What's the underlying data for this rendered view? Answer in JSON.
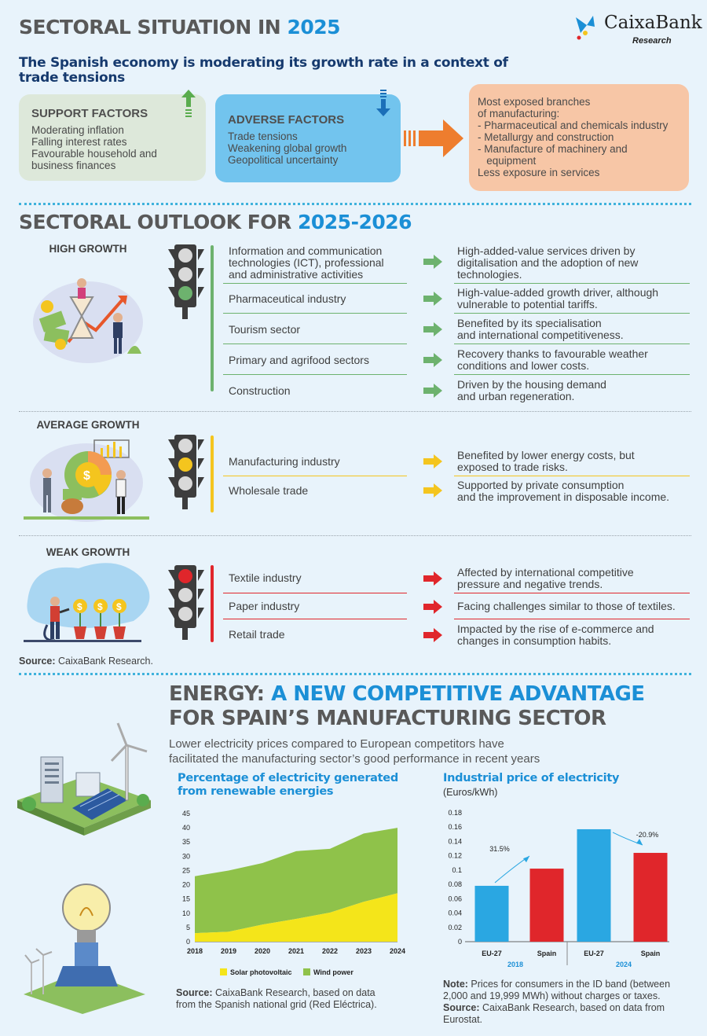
{
  "header": {
    "title_main": "SECTORAL SITUATION IN",
    "title_year": "2025",
    "logo_name": "CaixaBank",
    "logo_sub": "Research",
    "subtitle_line1": "The Spanish economy is moderating its growth rate in a context of",
    "subtitle_line2": "trade tensions"
  },
  "factors": {
    "support": {
      "title": "SUPPORT FACTORS",
      "items": [
        "Moderating inflation",
        "Falling interest rates",
        "Favourable household and",
        "business finances"
      ]
    },
    "adverse": {
      "title": "ADVERSE FACTORS",
      "items": [
        "Trade tensions",
        "Weakening global growth",
        "Geopolitical uncertainty"
      ]
    },
    "exposed": {
      "lines": [
        "Most exposed branches",
        "of manufacturing:",
        "- Pharmaceutical and chemicals industry",
        "- Metallurgy and construction",
        "- Manufacture of machinery and",
        "   equipment",
        "Less exposure in services"
      ]
    }
  },
  "outlook": {
    "title_main": "SECTORAL OUTLOOK FOR",
    "title_years": "2025-2026",
    "groups": [
      {
        "label": "HIGH GROWTH",
        "color": "#6db26e",
        "rows": [
          {
            "sector": [
              "Information and communication",
              "technologies (ICT), professional",
              "and administrative activities"
            ],
            "desc": [
              "High-added-value services driven by",
              "digitalisation and the adoption of new",
              "technologies."
            ]
          },
          {
            "sector": [
              "Pharmaceutical industry"
            ],
            "desc": [
              "High-value-added growth driver, although",
              "vulnerable to potential tariffs."
            ]
          },
          {
            "sector": [
              "Tourism sector"
            ],
            "desc": [
              "Benefited by its specialisation",
              "and international competitiveness."
            ]
          },
          {
            "sector": [
              "Primary and agrifood sectors"
            ],
            "desc": [
              "Recovery thanks to favourable weather",
              "conditions and lower costs."
            ]
          },
          {
            "sector": [
              "Construction"
            ],
            "desc": [
              "Driven by the housing demand",
              "and urban regeneration."
            ]
          }
        ]
      },
      {
        "label": "AVERAGE GROWTH",
        "color": "#f4c51e",
        "rows": [
          {
            "sector": [
              "Manufacturing industry"
            ],
            "desc": [
              "Benefited by lower energy costs, but",
              "exposed to trade risks."
            ]
          },
          {
            "sector": [
              "Wholesale trade"
            ],
            "desc": [
              "Supported by private consumption",
              "and the improvement in disposable income."
            ]
          }
        ]
      },
      {
        "label": "WEAK GROWTH",
        "color": "#e0262b",
        "rows": [
          {
            "sector": [
              "Textile industry"
            ],
            "desc": [
              "Affected by international competitive",
              "pressure and negative trends."
            ]
          },
          {
            "sector": [
              "Paper industry"
            ],
            "desc": [
              "Facing challenges similar to those of textiles."
            ]
          },
          {
            "sector": [
              "Retail trade"
            ],
            "desc": [
              "Impacted by the rise of e-commerce and",
              "changes in consumption habits."
            ]
          }
        ]
      }
    ],
    "source_label": "Source:",
    "source_text": " CaixaBank Research."
  },
  "energy": {
    "title_line1_a": "ENERGY:",
    "title_line1_b": "A NEW COMPETITIVE ADVANTAGE",
    "title_line2": "FOR SPAIN’S MANUFACTURING SECTOR",
    "intro_line1": "Lower electricity prices compared to European competitors have",
    "intro_line2": "facilitated the manufacturing sector’s good performance in recent years",
    "left_chart_title_1": "Percentage of electricity generated",
    "left_chart_title_2": "from renewable energies",
    "left_source_label": "Source:",
    "left_source_1": " CaixaBank Research, based on data",
    "left_source_2": "from the Spanish national grid (Red Eléctrica).",
    "right_chart_title": "Industrial price of electricity",
    "right_chart_unit": "(Euros/kWh)",
    "note_label": "Note:",
    "note_1": " Prices for consumers in the ID band (between",
    "note_2": "2,000 and 19,999 MWh) without charges or taxes.",
    "right_source_label": "Source:",
    "right_source_1": " CaixaBank Research, based on data from",
    "right_source_2": "Eurostat."
  },
  "chart_data": [
    {
      "type": "area",
      "title": "Percentage of electricity generated from renewable energies",
      "x": [
        "2018",
        "2019",
        "2020",
        "2021",
        "2022",
        "2023",
        "2024"
      ],
      "series": [
        {
          "name": "Solar photovoltaic",
          "color": "#f4e51a",
          "values": [
            3,
            3.5,
            6,
            8,
            10.2,
            14,
            17
          ]
        },
        {
          "name": "Wind power",
          "color": "#8fc24a",
          "values": [
            20,
            21.5,
            21.6,
            23.8,
            22.4,
            24,
            23
          ]
        }
      ],
      "ylim": [
        0,
        45
      ],
      "yticks": [
        "0",
        "5",
        "10",
        "15",
        "20",
        "25",
        "30",
        "35",
        "40",
        "45"
      ],
      "stacked": true,
      "legend": "bottom"
    },
    {
      "type": "bar",
      "title": "Industrial price of electricity",
      "ylabel": "(Euros/kWh)",
      "categories": [
        "EU-27",
        "Spain",
        "EU-27",
        "Spain"
      ],
      "groups": [
        "2018",
        "2024"
      ],
      "values": [
        0.078,
        0.102,
        0.157,
        0.124
      ],
      "colors": [
        "#2aa7e2",
        "#e0262b",
        "#2aa7e2",
        "#e0262b"
      ],
      "annotations": [
        "31.5%",
        "-20.9%"
      ],
      "ylim": [
        0,
        0.18
      ],
      "yticks": [
        "0",
        "0.02",
        "0.04",
        "0.06",
        "0.08",
        "0.1",
        "0.12",
        "0.14",
        "0.16",
        "0.18"
      ]
    }
  ]
}
